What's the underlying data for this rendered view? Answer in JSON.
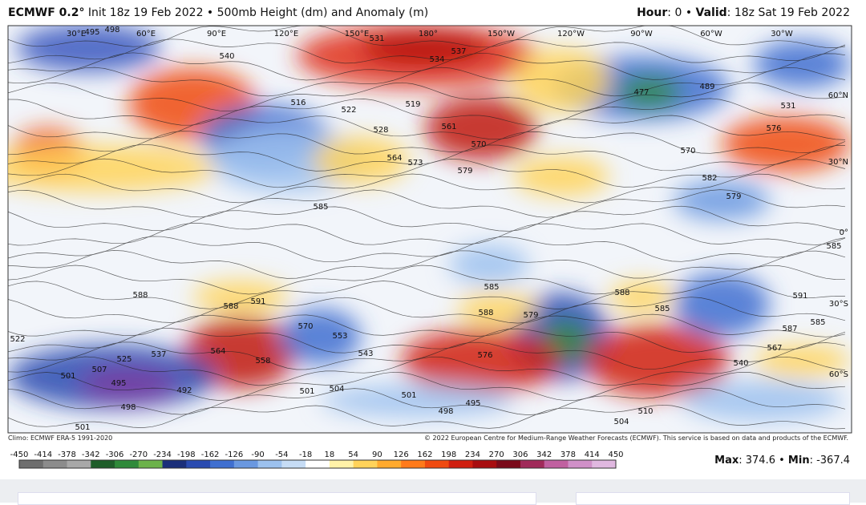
{
  "header": {
    "model": "ECMWF 0.2°",
    "description": "Init 18z 19 Feb 2022 • 500mb Height (dm) and Anomaly (m)",
    "hour_label": "Hour",
    "hour": ": 0 • ",
    "valid_label": "Valid",
    "valid": ": 18z Sat 19 Feb 2022"
  },
  "map": {
    "longitude_labels": [
      "30°E",
      "60°E",
      "90°E",
      "120°E",
      "150°E",
      "180°",
      "150°W",
      "120°W",
      "90°W",
      "60°W",
      "30°W"
    ],
    "latitude_labels": [
      "60°N",
      "30°N",
      "0°",
      "30°S",
      "60°S"
    ],
    "contour_labels": [
      "495",
      "498",
      "531",
      "534",
      "537",
      "540",
      "516",
      "519",
      "522",
      "528",
      "561",
      "570",
      "564",
      "573",
      "579",
      "585",
      "477",
      "489",
      "531",
      "576",
      "570",
      "582",
      "579",
      "585",
      "588",
      "591",
      "588",
      "585",
      "588",
      "579",
      "588",
      "585",
      "591",
      "585",
      "587",
      "567",
      "564",
      "558",
      "570",
      "553",
      "543",
      "576",
      "537",
      "525",
      "507",
      "501",
      "495",
      "492",
      "498",
      "501",
      "504",
      "501",
      "501",
      "498",
      "495",
      "510",
      "504",
      "540",
      "522"
    ]
  },
  "footer": {
    "climo": "Climo: ECMWF ERA-5 1991-2020",
    "copyright": "© 2022 European Centre for Medium-Range Weather Forecasts (ECMWF). This service is based on data and products of the ECMWF."
  },
  "colorbar": {
    "ticks": [
      -450,
      -414,
      -378,
      -342,
      -306,
      -270,
      -234,
      -198,
      -162,
      -126,
      -90,
      -54,
      -18,
      18,
      54,
      90,
      126,
      162,
      198,
      234,
      270,
      306,
      342,
      378,
      414,
      450
    ],
    "colors": [
      "#6e6e6e",
      "#8c8c8c",
      "#a8a8a8",
      "#1f5e2a",
      "#2f8a3a",
      "#6cb24a",
      "#1b2f7a",
      "#2a4bb0",
      "#3f6fd0",
      "#6a98e0",
      "#9cc1ee",
      "#c6dcf5",
      "#ffffff",
      "#fff2a8",
      "#ffd35a",
      "#ffaa2e",
      "#ff7a1a",
      "#f04a10",
      "#d01f10",
      "#a80d10",
      "#7a0a1a",
      "#a02a5a",
      "#c060a0",
      "#d090c8",
      "#e0b8e0"
    ]
  },
  "stats": {
    "max_label": "Max",
    "max": ": 374.6 • ",
    "min_label": "Min",
    "min": ": -367.4"
  }
}
